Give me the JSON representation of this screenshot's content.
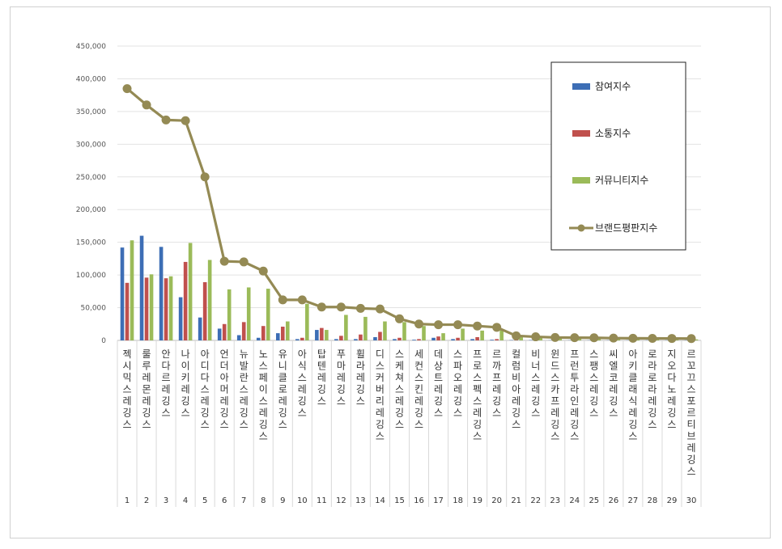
{
  "chart_data": {
    "type": "bar",
    "title": "",
    "xlabel": "",
    "ylabel": "",
    "ylim": [
      0,
      450000
    ],
    "yticks": [
      "0",
      "50,000",
      "100,000",
      "150,000",
      "200,000",
      "250,000",
      "300,000",
      "350,000",
      "400,000",
      "450,000"
    ],
    "ytick_values": [
      0,
      50000,
      100000,
      150000,
      200000,
      250000,
      300000,
      350000,
      400000,
      450000
    ],
    "grid": true,
    "legend_position": "top-right",
    "ranks": [
      "1",
      "2",
      "3",
      "4",
      "5",
      "6",
      "7",
      "8",
      "9",
      "10",
      "11",
      "12",
      "13",
      "14",
      "15",
      "16",
      "17",
      "18",
      "19",
      "20",
      "21",
      "22",
      "23",
      "24",
      "25",
      "26",
      "27",
      "28",
      "29",
      "30"
    ],
    "categories": [
      "젝시믹스레깅스",
      "룰루레몬레깅스",
      "안다르레깅스",
      "나이키레깅스",
      "아디다스레깅스",
      "언더아머레깅스",
      "뉴발란스레깅스",
      "노스페이스레깅스",
      "유니클로레깅스",
      "아식스레깅스",
      "탑텐레깅스",
      "푸마레깅스",
      "휠라레깅스",
      "디스커버리레깅스",
      "스케쳐스레깅스",
      "세컨스킨레깅스",
      "데상트레깅스",
      "스파오레깅스",
      "프로스펙스레깅스",
      "르까프레깅스",
      "컬럼비아레깅스",
      "비너스레깅스",
      "윈드스카프레깅스",
      "프런투라인레깅스",
      "스팽스레깅스",
      "씨엘코레깅스",
      "아키클래식레깅스",
      "로라로라레깅스",
      "지오다노레깅스",
      "르꼬끄스포르티브레깅스"
    ],
    "series": [
      {
        "name": "참여지수",
        "kind": "bar",
        "color": "#3d6eb5",
        "values": [
          142000,
          160000,
          143000,
          66000,
          35000,
          18000,
          8000,
          4000,
          11000,
          2000,
          16000,
          2000,
          2000,
          5000,
          2000,
          1000,
          4000,
          2000,
          2000,
          1000,
          500,
          500,
          300,
          300,
          300,
          300,
          300,
          300,
          300,
          300
        ]
      },
      {
        "name": "소통지수",
        "kind": "bar",
        "color": "#c0504d",
        "values": [
          88000,
          96000,
          95000,
          120000,
          89000,
          25000,
          28000,
          22000,
          21000,
          4000,
          19000,
          7000,
          9000,
          13000,
          4000,
          2000,
          6000,
          4000,
          5000,
          2000,
          1000,
          800,
          800,
          800,
          700,
          700,
          700,
          600,
          600,
          600
        ]
      },
      {
        "name": "커뮤니티지수",
        "kind": "bar",
        "color": "#9bbb59",
        "values": [
          153000,
          101000,
          98000,
          149000,
          123000,
          78000,
          81000,
          79000,
          29000,
          56000,
          16000,
          39000,
          36000,
          29000,
          28000,
          22000,
          11000,
          18000,
          15000,
          17000,
          5000,
          4000,
          3000,
          3000,
          3000,
          2000,
          2000,
          2000,
          2000,
          1500
        ]
      },
      {
        "name": "브랜드평판지수",
        "kind": "line",
        "color": "#948a54",
        "values": [
          385000,
          360000,
          337000,
          336000,
          250000,
          121000,
          120000,
          106000,
          62000,
          62000,
          51000,
          51000,
          49000,
          48000,
          33000,
          25000,
          24000,
          24000,
          22000,
          20000,
          7000,
          5500,
          4500,
          4200,
          4000,
          3500,
          3200,
          3100,
          3000,
          2800
        ]
      }
    ]
  }
}
